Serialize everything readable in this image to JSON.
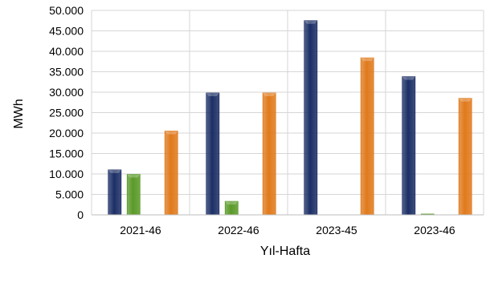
{
  "chart_data": {
    "type": "bar",
    "xlabel": "Yıl-Hafta",
    "ylabel": "MWh",
    "ylim": [
      0,
      50000
    ],
    "yticks": [
      "0",
      "5.000",
      "10.000",
      "15.000",
      "20.000",
      "25.000",
      "30.000",
      "35.000",
      "40.000",
      "45.000",
      "50.000"
    ],
    "categories": [
      "2021-46",
      "2022-46",
      "2023-45",
      "2023-46"
    ],
    "grid": true,
    "series": [
      {
        "color": "#1c2f66",
        "values": [
          11000,
          29800,
          47500,
          33800
        ]
      },
      {
        "color": "#5a9a28",
        "values": [
          9900,
          3300,
          0,
          200
        ]
      },
      {
        "color": "#e07a1c",
        "values": [
          20500,
          29800,
          38400,
          28500
        ]
      }
    ]
  }
}
